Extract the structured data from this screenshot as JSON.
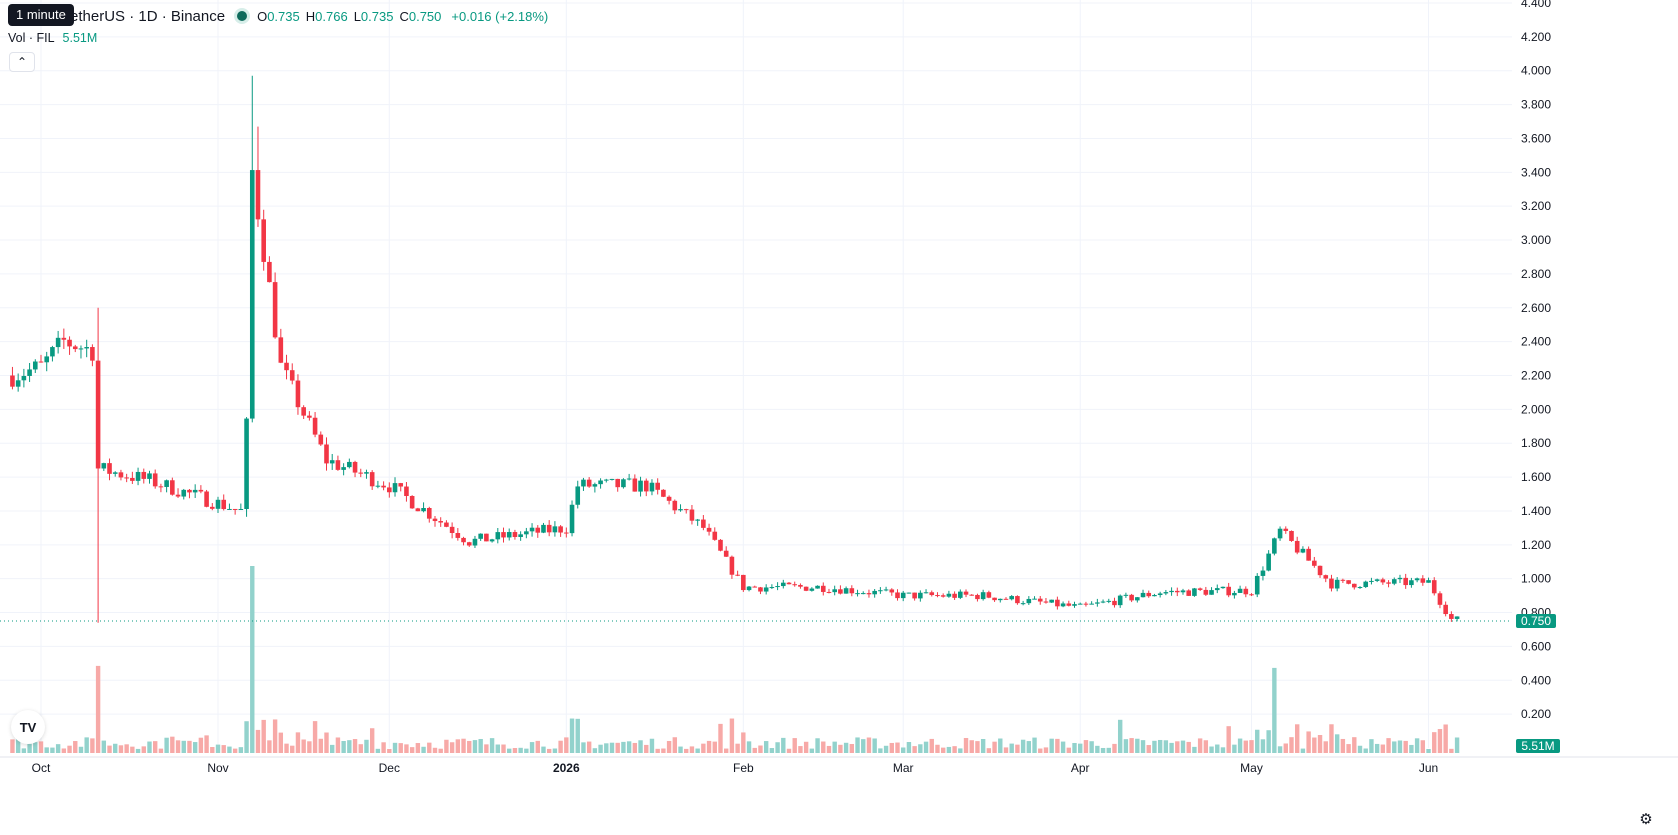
{
  "header": {
    "symbol": "etherUS · 1D · Binance",
    "open_label": "O",
    "open": "0.735",
    "high_label": "H",
    "high": "0.766",
    "low_label": "L",
    "low": "0.735",
    "close_label": "C",
    "close": "0.750",
    "change": "+0.016 (+2.18%)",
    "tooltip": "1 minute"
  },
  "volume_legend": {
    "label": "Vol · FIL",
    "value": "5.51M"
  },
  "price_badge": "0.750",
  "volume_badge": "5.51M",
  "colors": {
    "up": "#089981",
    "down": "#f23645",
    "up_vol": "#92d2cc",
    "down_vol": "#f7a9a7",
    "grid": "#f0f3fa",
    "text": "#131722"
  },
  "icons": {
    "collapse": "chevron-up-icon",
    "logo": "tradingview-logo-icon",
    "settings": "gear-icon"
  },
  "chart_data": {
    "type": "candlestick",
    "price_axis": {
      "ticks": [
        "4.400",
        "4.200",
        "4.000",
        "3.800",
        "3.600",
        "3.400",
        "3.200",
        "3.000",
        "2.800",
        "2.600",
        "2.400",
        "2.200",
        "2.000",
        "1.800",
        "1.600",
        "1.400",
        "1.200",
        "1.000",
        "0.800",
        "0.600",
        "0.400",
        "0.200"
      ],
      "ylim": [
        0,
        4.4
      ]
    },
    "time_axis": {
      "labels": [
        "Oct",
        "Nov",
        "Dec",
        "2026",
        "Feb",
        "Mar",
        "Apr",
        "May",
        "Jun"
      ]
    },
    "current_price": 0.75,
    "volume_last": "5.51M",
    "series_anchors": [
      {
        "date": "Sep 26",
        "close": 2.2
      },
      {
        "date": "Oct 1",
        "close": 2.25
      },
      {
        "date": "Oct 5",
        "close": 2.4
      },
      {
        "date": "Oct 10",
        "close": 2.35
      },
      {
        "date": "Oct 11",
        "close": 1.65
      },
      {
        "date": "Oct 20",
        "close": 1.58
      },
      {
        "date": "Nov 5",
        "close": 1.4
      },
      {
        "date": "Nov 6",
        "close": 1.9
      },
      {
        "date": "Nov 7",
        "close": 3.4
      },
      {
        "date": "Nov 9",
        "close": 2.95
      },
      {
        "date": "Nov 12",
        "close": 2.25
      },
      {
        "date": "Nov 20",
        "close": 1.7
      },
      {
        "date": "Dec 1",
        "close": 1.55
      },
      {
        "date": "Dec 15",
        "close": 1.22
      },
      {
        "date": "Jan 1",
        "close": 1.3
      },
      {
        "date": "Jan 3",
        "close": 1.55
      },
      {
        "date": "Jan 15",
        "close": 1.55
      },
      {
        "date": "Jan 25",
        "close": 1.3
      },
      {
        "date": "Feb 1",
        "close": 0.95
      },
      {
        "date": "Feb 15",
        "close": 0.95
      },
      {
        "date": "Mar 1",
        "close": 0.9
      },
      {
        "date": "Mar 15",
        "close": 0.9
      },
      {
        "date": "Apr 1",
        "close": 0.83
      },
      {
        "date": "Apr 15",
        "close": 0.92
      },
      {
        "date": "May 1",
        "close": 0.93
      },
      {
        "date": "May 6",
        "close": 1.28
      },
      {
        "date": "May 15",
        "close": 0.97
      },
      {
        "date": "Jun 1",
        "close": 0.98
      },
      {
        "date": "Jun 5",
        "close": 0.76
      },
      {
        "date": "Jun 10",
        "close": 0.75
      }
    ],
    "spike_highs": [
      {
        "date": "Oct 11",
        "high": 2.6,
        "low": 0.74
      },
      {
        "date": "Nov 7",
        "high": 3.97
      },
      {
        "date": "Nov 8",
        "high": 3.67
      }
    ],
    "volume_spikes": [
      {
        "date": "Oct 11",
        "value": "large"
      },
      {
        "date": "Nov 7",
        "value": "largest"
      },
      {
        "date": "May 5",
        "value": "large"
      }
    ]
  }
}
